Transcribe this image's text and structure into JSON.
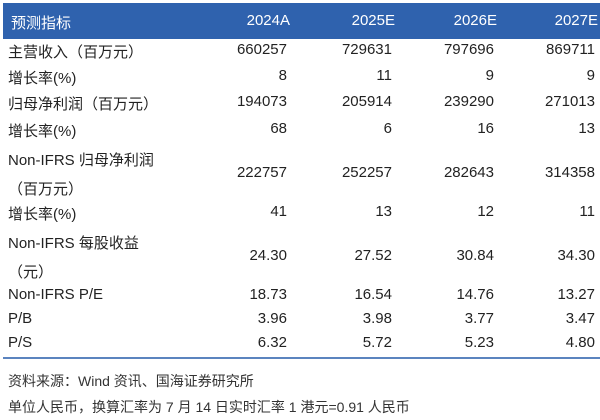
{
  "table": {
    "header": {
      "label": "预测指标",
      "years": [
        "2024A",
        "2025E",
        "2026E",
        "2027E"
      ]
    },
    "rows": [
      {
        "label": "主营收入（百万元）",
        "values": [
          "660257",
          "729631",
          "797696",
          "869711"
        ]
      },
      {
        "label": "增长率(%)",
        "values": [
          "8",
          "11",
          "9",
          "9"
        ]
      },
      {
        "label": "归母净利润（百万元）",
        "values": [
          "194073",
          "205914",
          "239290",
          "271013"
        ]
      },
      {
        "label": "增长率(%)",
        "values": [
          "68",
          "6",
          "16",
          "13"
        ]
      },
      {
        "label": "Non-IFRS 归母净利润",
        "label2": "（百万元）",
        "values": [
          "222757",
          "252257",
          "282643",
          "314358"
        ]
      },
      {
        "label": "增长率(%)",
        "values": [
          "41",
          "13",
          "12",
          "11"
        ]
      },
      {
        "label": "Non-IFRS 每股收益",
        "label2": "（元）",
        "values": [
          "24.30",
          "27.52",
          "30.84",
          "34.30"
        ]
      },
      {
        "label": "Non-IFRS P/E",
        "values": [
          "18.73",
          "16.54",
          "14.76",
          "13.27"
        ]
      },
      {
        "label": "P/B",
        "values": [
          "3.96",
          "3.98",
          "3.77",
          "3.47"
        ]
      },
      {
        "label": "P/S",
        "values": [
          "6.32",
          "5.72",
          "5.23",
          "4.80"
        ]
      }
    ]
  },
  "source": "资料来源：Wind 资讯、国海证券研究所",
  "note": "单位人民币，换算汇率为 7 月 14 日实时汇率 1 港元=0.91 人民币",
  "colors": {
    "header_bg": "#2f62ae",
    "rule": "#5b84bf"
  }
}
